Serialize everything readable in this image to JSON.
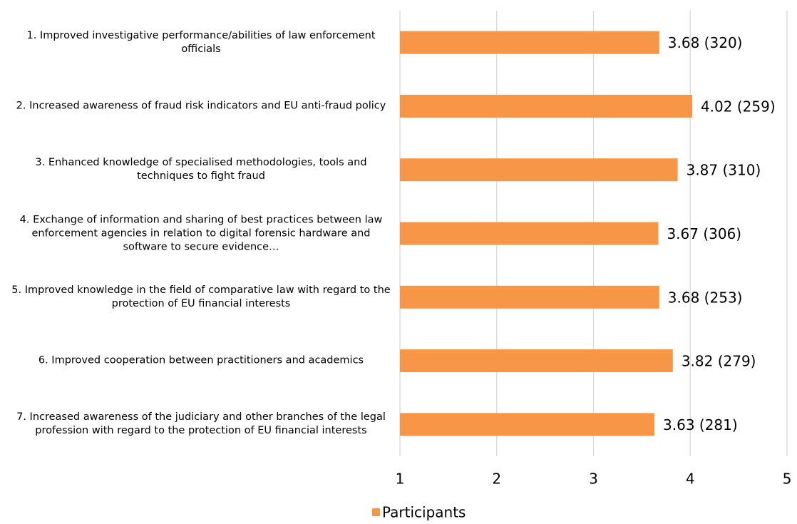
{
  "chart_data": {
    "type": "bar",
    "orientation": "horizontal",
    "categories": [
      "1. Improved investigative performance/abilities of law enforcement officials",
      "2. Increased awareness of fraud risk indicators and EU anti-fraud policy",
      "3. Enhanced knowledge of specialised methodologies, tools and techniques to fight fraud",
      "4. Exchange of information and sharing of best practices between law enforcement agencies in relation to digital forensic hardware and software to secure evidence…",
      "5. Improved knowledge in the field of comparative law with regard to the protection of EU financial interests",
      "6. Improved cooperation between practitioners and academics",
      "7. Increased awareness of the judiciary and other branches of the legal profession with regard to the protection of EU financial interests"
    ],
    "series": [
      {
        "name": "Participants",
        "color": "#f79646",
        "values": [
          3.68,
          4.02,
          3.87,
          3.67,
          3.68,
          3.82,
          3.63
        ],
        "value_labels": [
          "3.68 (320)",
          "4.02 (259)",
          "3.87 (310)",
          "3.67 (306)",
          "3.68 (253)",
          "3.82 (279)",
          "3.63 (281)"
        ]
      }
    ],
    "xlim": [
      1,
      5
    ],
    "xticks": [
      1,
      2,
      3,
      4,
      5
    ],
    "grid": true,
    "legend": "bottom"
  }
}
